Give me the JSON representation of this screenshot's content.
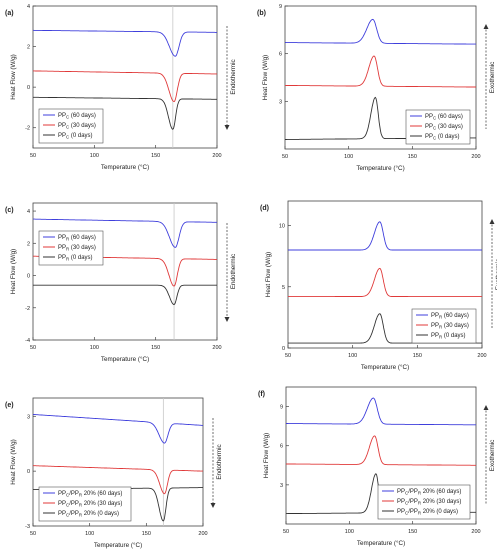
{
  "figure": {
    "panels": [
      "(a)",
      "(b)",
      "(c)",
      "(d)",
      "(e)",
      "(f)"
    ]
  },
  "chart_data": [
    {
      "id": "a",
      "type": "line",
      "label": "(a)",
      "xlabel": "Temperature (°C)",
      "ylabel": "Heat Flow (W/g)",
      "xlim": [
        50,
        200
      ],
      "ylim": [
        -3,
        4
      ],
      "xticks": [
        50,
        100,
        150,
        200
      ],
      "yticks": [
        -2,
        0,
        2,
        4
      ],
      "arrow": {
        "direction": "down",
        "label": "Endothermic"
      },
      "vline_x": 164,
      "legend": "bottom-left",
      "series": [
        {
          "name": "PP",
          "sub": "C",
          "suffix": " (60 days)",
          "color": "#3f3fdc",
          "base": 2.8,
          "end": 2.7,
          "peak_x": 166,
          "peak_h": 1.2,
          "width": 3
        },
        {
          "name": "PP",
          "sub": "C",
          "suffix": " (30 days)",
          "color": "#e03a3a",
          "base": 0.8,
          "end": 0.65,
          "peak_x": 165,
          "peak_h": 1.4,
          "width": 2.6
        },
        {
          "name": "PP",
          "sub": "C",
          "suffix": " (0 days)",
          "color": "#333333",
          "base": -0.5,
          "end": -0.6,
          "peak_x": 164,
          "peak_h": 1.5,
          "width": 2.2
        }
      ]
    },
    {
      "id": "b",
      "type": "line",
      "label": "(b)",
      "xlabel": "Temperature (°C)",
      "ylabel": "Heat Flow (W/g)",
      "xlim": [
        50,
        200
      ],
      "ylim": [
        0,
        9
      ],
      "xticks": [
        50,
        100,
        150,
        200
      ],
      "yticks": [
        3,
        6,
        9
      ],
      "arrow": {
        "direction": "up",
        "label": "Exothermic"
      },
      "legend": "bottom-right",
      "series": [
        {
          "name": "PP",
          "sub": "C",
          "suffix": " (60 days)",
          "color": "#3f3fdc",
          "base": 6.7,
          "end": 6.6,
          "peak_x": 119,
          "peak_h": 1.5,
          "width": 3
        },
        {
          "name": "PP",
          "sub": "C",
          "suffix": " (30 days)",
          "color": "#e03a3a",
          "base": 4.0,
          "end": 3.9,
          "peak_x": 120,
          "peak_h": 1.9,
          "width": 2.6
        },
        {
          "name": "PP",
          "sub": "C",
          "suffix": " (0 days)",
          "color": "#333333",
          "base": 0.6,
          "end": 0.7,
          "peak_x": 121,
          "peak_h": 2.6,
          "width": 2.2
        }
      ]
    },
    {
      "id": "c",
      "type": "line",
      "label": "(c)",
      "xlabel": "Temperature (°C)",
      "ylabel": "Heat Flow (W/g)",
      "xlim": [
        50,
        200
      ],
      "ylim": [
        -4,
        4.5
      ],
      "xticks": [
        50,
        100,
        150,
        200
      ],
      "yticks": [
        -4,
        -2,
        0,
        2,
        4
      ],
      "arrow": {
        "direction": "down",
        "label": "Endothermic"
      },
      "vline_x": 165,
      "legend": "top-left",
      "series": [
        {
          "name": "PP",
          "sub": "R",
          "suffix": " (60 days)",
          "color": "#3f3fdc",
          "base": 3.5,
          "end": 3.3,
          "peak_x": 166,
          "peak_h": 1.6,
          "width": 3
        },
        {
          "name": "PP",
          "sub": "R",
          "suffix": " (30 days)",
          "color": "#e03a3a",
          "base": 1.2,
          "end": 1.0,
          "peak_x": 165,
          "peak_h": 1.7,
          "width": 2.6
        },
        {
          "name": "PP",
          "sub": "R",
          "suffix": " (0 days)",
          "color": "#333333",
          "base": -0.6,
          "end": -0.6,
          "peak_x": 165,
          "peak_h": 1.2,
          "width": 2.3
        }
      ]
    },
    {
      "id": "d",
      "type": "line",
      "label": "(d)",
      "xlabel": "Temperature (°C)",
      "ylabel": "Heat Flow (W/g)",
      "xlim": [
        50,
        200
      ],
      "ylim": [
        0,
        12
      ],
      "xticks": [
        50,
        100,
        150,
        200
      ],
      "yticks": [
        0,
        5,
        10
      ],
      "arrow": {
        "direction": "up",
        "label": "Exothermic"
      },
      "legend": "bottom-right",
      "series": [
        {
          "name": "PP",
          "sub": "R",
          "suffix": " (60 days)",
          "color": "#3f3fdc",
          "base": 8.0,
          "end": 8.0,
          "peak_x": 121,
          "peak_h": 2.3,
          "width": 2.6
        },
        {
          "name": "PP",
          "sub": "R",
          "suffix": " (30 days)",
          "color": "#e03a3a",
          "base": 4.2,
          "end": 4.2,
          "peak_x": 121,
          "peak_h": 2.3,
          "width": 2.6
        },
        {
          "name": "PP",
          "sub": "R",
          "suffix": " (0 days)",
          "color": "#333333",
          "base": 0.4,
          "end": 0.4,
          "peak_x": 121,
          "peak_h": 2.4,
          "width": 2.6
        }
      ]
    },
    {
      "id": "e",
      "type": "line",
      "label": "(e)",
      "xlabel": "Temperature (°C)",
      "ylabel": "Heat Flow (W/g)",
      "xlim": [
        50,
        200
      ],
      "ylim": [
        -3,
        4
      ],
      "xticks": [
        50,
        100,
        150,
        200
      ],
      "yticks": [
        -3,
        0,
        3
      ],
      "arrow": {
        "direction": "down",
        "label": "Endothermic"
      },
      "vline_x": 165,
      "legend": "bottom-left",
      "series": [
        {
          "name": "PP",
          "sub": "C",
          "mid": "/PP",
          "sub2": "R",
          "suffix": " 20% (60 days)",
          "color": "#3f3fdc",
          "base": 3.1,
          "end": 2.5,
          "peak_x": 166,
          "peak_h": 1.1,
          "width": 3
        },
        {
          "name": "PP",
          "sub": "C",
          "mid": "/PP",
          "sub2": "R",
          "suffix": " 20% (30 days)",
          "color": "#e03a3a",
          "base": 0.3,
          "end": 0.0,
          "peak_x": 166,
          "peak_h": 1.3,
          "width": 2.6
        },
        {
          "name": "PP",
          "sub": "C",
          "mid": "/PP",
          "sub2": "R",
          "suffix": " 20% (0 days)",
          "color": "#333333",
          "base": -1.0,
          "end": -0.9,
          "peak_x": 165,
          "peak_h": 1.8,
          "width": 2.3
        }
      ]
    },
    {
      "id": "f",
      "type": "line",
      "label": "(f)",
      "xlabel": "Temperature (°C)",
      "ylabel": "Heat Flow (W/g)",
      "xlim": [
        50,
        200
      ],
      "ylim": [
        0,
        10.5
      ],
      "xticks": [
        50,
        100,
        150,
        200
      ],
      "yticks": [
        3,
        6,
        9
      ],
      "arrow": {
        "direction": "up",
        "label": "Exothermic"
      },
      "legend": "bottom-right",
      "series": [
        {
          "name": "PP",
          "sub": "C",
          "mid": "/PP",
          "sub2": "R",
          "suffix": " 20% (60 days)",
          "color": "#3f3fdc",
          "base": 7.7,
          "end": 7.6,
          "peak_x": 119,
          "peak_h": 2.0,
          "width": 3
        },
        {
          "name": "PP",
          "sub": "C",
          "mid": "/PP",
          "sub2": "R",
          "suffix": " 20% (30 days)",
          "color": "#e03a3a",
          "base": 4.6,
          "end": 4.5,
          "peak_x": 120,
          "peak_h": 2.2,
          "width": 2.6
        },
        {
          "name": "PP",
          "sub": "C",
          "mid": "/PP",
          "sub2": "R",
          "suffix": " 20% (0 days)",
          "color": "#333333",
          "base": 0.8,
          "end": 0.9,
          "peak_x": 121,
          "peak_h": 3.0,
          "width": 2.2
        }
      ]
    }
  ]
}
